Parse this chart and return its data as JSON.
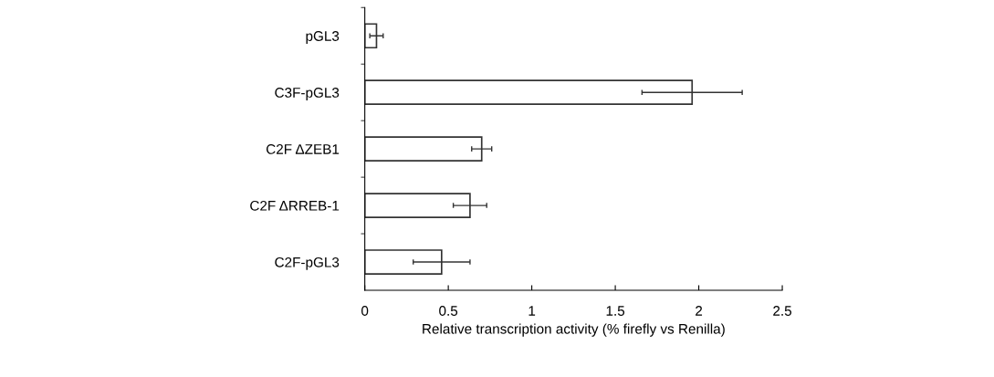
{
  "chart_data": {
    "type": "bar",
    "orientation": "horizontal",
    "categories": [
      "pGL3",
      "C3F-pGL3",
      "C2F ΔZEB1",
      "C2F ΔRREB-1",
      "C2F-pGL3"
    ],
    "values": [
      0.07,
      1.96,
      0.7,
      0.63,
      0.46
    ],
    "errors": [
      0.04,
      0.3,
      0.06,
      0.1,
      0.17
    ],
    "color": "#ffffff",
    "xlim": [
      0,
      2.5
    ],
    "xticks": [
      0,
      0.5,
      1,
      1.5,
      2,
      2.5
    ],
    "xlabel": "Relative transcription activity (% firefly vs Renilla)",
    "grid": false
  }
}
